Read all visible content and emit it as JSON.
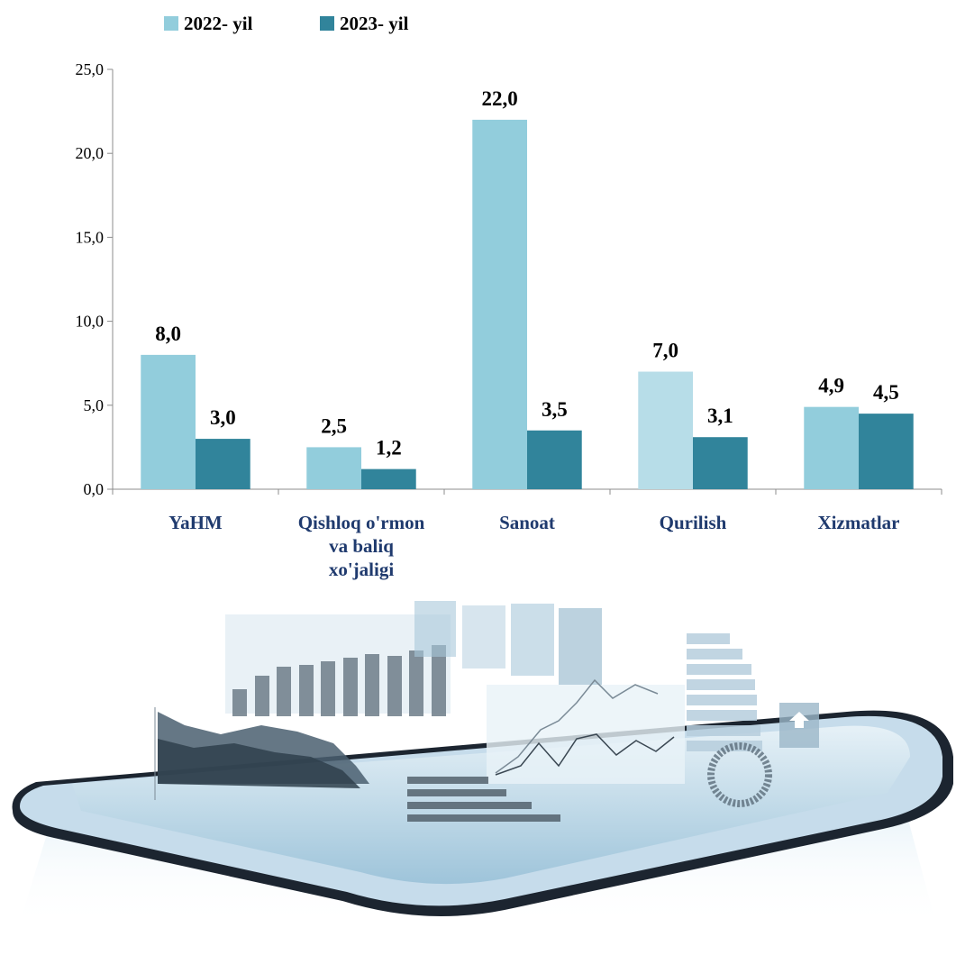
{
  "colors": {
    "series_2022": "#92cddc",
    "series_2022_alt": "#b7dde8",
    "series_2023": "#31849b",
    "category_text": "#1f3a6e"
  },
  "decoration": {
    "icon": "tablet-with-charts-illustration"
  },
  "chart_data": {
    "type": "bar",
    "title": "",
    "xlabel": "",
    "ylabel": "",
    "ylim": [
      0,
      25
    ],
    "yticks": [
      "0,0",
      "5,0",
      "10,0",
      "15,0",
      "20,0",
      "25,0"
    ],
    "ytick_values": [
      0,
      5,
      10,
      15,
      20,
      25
    ],
    "grid": false,
    "legend_position": "top-left",
    "categories": [
      [
        "YaHM"
      ],
      [
        "Qishloq o'rmon",
        "va baliq",
        "xo'jaligi"
      ],
      [
        "Sanoat"
      ],
      [
        "Qurilish"
      ],
      [
        "Xizmatlar"
      ]
    ],
    "series": [
      {
        "name": "2022- yil",
        "values": [
          8.0,
          2.5,
          22.0,
          7.0,
          4.9
        ],
        "labels": [
          "8,0",
          "2,5",
          "22,0",
          "7,0",
          "4,9"
        ]
      },
      {
        "name": "2023- yil",
        "values": [
          3.0,
          1.2,
          3.5,
          3.1,
          4.5
        ],
        "labels": [
          "3,0",
          "1,2",
          "3,5",
          "3,1",
          "4,5"
        ]
      }
    ]
  }
}
